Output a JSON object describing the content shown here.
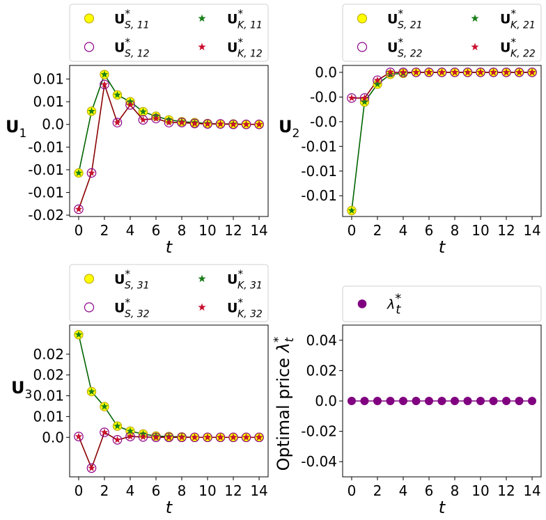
{
  "chart_data": [
    {
      "type": "line",
      "panel": "top-left",
      "xlabel": "t",
      "ylabel": "U",
      "ylabel_sub": "1",
      "x": [
        0,
        1,
        2,
        3,
        4,
        5,
        6,
        7,
        8,
        9,
        10,
        11,
        12,
        13,
        14
      ],
      "xlim": [
        -0.7,
        14.7
      ],
      "xticks": [
        0,
        2,
        4,
        6,
        8,
        10,
        12,
        14
      ],
      "xtick_labels": [
        "0",
        "2",
        "4",
        "6",
        "8",
        "10",
        "12",
        "14"
      ],
      "ylim": [
        -0.0203,
        0.013
      ],
      "yticks": [
        -0.02,
        -0.015,
        -0.01,
        -0.005,
        0.0,
        0.005,
        0.01
      ],
      "ytick_labels": [
        "-0.02",
        "-0.01",
        "-0.01",
        "-0.01",
        "0.0",
        "0.01",
        "0.01"
      ],
      "legend_columns": 2,
      "series": [
        {
          "name": "U*S,11",
          "legend_main": "U",
          "sup": "*",
          "sub": "S, 11",
          "kind": "yellow-circle",
          "values": [
            -0.0107,
            0.0029,
            0.011,
            0.0065,
            0.005,
            0.0028,
            0.0018,
            0.001,
            0.0006,
            0.0004,
            0.0002,
            0.0001,
            0.0001,
            0.0,
            0.0
          ]
        },
        {
          "name": "U*S,12",
          "legend_main": "U",
          "sup": "*",
          "sub": "S, 12",
          "kind": "purple-circle",
          "values": [
            -0.0187,
            -0.0107,
            0.0088,
            0.0004,
            0.0043,
            0.001,
            0.0013,
            0.0004,
            0.0004,
            0.0002,
            0.0001,
            0.0001,
            0.0,
            0.0,
            0.0
          ]
        },
        {
          "name": "U*K,11",
          "legend_main": "U",
          "sup": "*",
          "sub": "K, 11",
          "kind": "green-star",
          "values": [
            -0.0107,
            0.0029,
            0.011,
            0.0065,
            0.005,
            0.0028,
            0.0018,
            0.001,
            0.0006,
            0.0004,
            0.0002,
            0.0001,
            0.0001,
            0.0,
            0.0
          ]
        },
        {
          "name": "U*K,12",
          "legend_main": "U",
          "sup": "*",
          "sub": "K, 12",
          "kind": "red-star",
          "values": [
            -0.0187,
            -0.0107,
            0.0088,
            0.0004,
            0.0043,
            0.001,
            0.0013,
            0.0004,
            0.0004,
            0.0002,
            0.0001,
            0.0001,
            0.0,
            0.0,
            0.0
          ]
        }
      ]
    },
    {
      "type": "line",
      "panel": "top-right",
      "xlabel": "t",
      "ylabel": "U",
      "ylabel_sub": "2",
      "x": [
        0,
        1,
        2,
        3,
        4,
        5,
        6,
        7,
        8,
        9,
        10,
        11,
        12,
        13,
        14
      ],
      "xlim": [
        -0.7,
        14.7
      ],
      "xticks": [
        0,
        2,
        4,
        6,
        8,
        10,
        12,
        14
      ],
      "xtick_labels": [
        "0",
        "2",
        "4",
        "6",
        "8",
        "10",
        "12",
        "14"
      ],
      "ylim": [
        -0.0146,
        0.0007
      ],
      "yticks": [
        0.0,
        -0.0025,
        -0.005,
        -0.0075,
        -0.01,
        -0.0125
      ],
      "ytick_labels": [
        "0.0",
        "-0.0",
        "-0.0",
        "-0.01",
        "-0.01",
        "-0.01"
      ],
      "legend_columns": 2,
      "series": [
        {
          "name": "U*S,21",
          "legend_main": "U",
          "sup": "*",
          "sub": "S, 21",
          "kind": "yellow-circle",
          "values": [
            -0.014,
            -0.003,
            -0.0012,
            -0.0002,
            -0.0001,
            0.0,
            0.0,
            0.0,
            0.0,
            0.0,
            0.0,
            0.0,
            0.0,
            0.0,
            0.0
          ]
        },
        {
          "name": "U*S,22",
          "legend_main": "U",
          "sup": "*",
          "sub": "S, 22",
          "kind": "purple-circle",
          "values": [
            -0.0026,
            -0.0026,
            -0.0008,
            0.0,
            0.0,
            0.0,
            0.0,
            0.0,
            0.0,
            0.0,
            0.0,
            0.0,
            0.0,
            0.0,
            0.0
          ]
        },
        {
          "name": "U*K,21",
          "legend_main": "U",
          "sup": "*",
          "sub": "K, 21",
          "kind": "green-star",
          "values": [
            -0.014,
            -0.003,
            -0.0012,
            -0.0002,
            -0.0001,
            0.0,
            0.0,
            0.0,
            0.0,
            0.0,
            0.0,
            0.0,
            0.0,
            0.0,
            0.0
          ]
        },
        {
          "name": "U*K,22",
          "legend_main": "U",
          "sup": "*",
          "sub": "K, 22",
          "kind": "red-star",
          "values": [
            -0.0026,
            -0.0026,
            -0.0008,
            0.0,
            0.0,
            0.0,
            0.0,
            0.0,
            0.0,
            0.0,
            0.0,
            0.0,
            0.0,
            0.0,
            0.0
          ]
        }
      ]
    },
    {
      "type": "line",
      "panel": "bottom-left",
      "xlabel": "t",
      "ylabel": "U",
      "ylabel_sub": "3",
      "x": [
        0,
        1,
        2,
        3,
        4,
        5,
        6,
        7,
        8,
        9,
        10,
        11,
        12,
        13,
        14
      ],
      "xlim": [
        -0.7,
        14.7
      ],
      "xticks": [
        0,
        2,
        4,
        6,
        8,
        10,
        12,
        14
      ],
      "xtick_labels": [
        "0",
        "2",
        "4",
        "6",
        "8",
        "10",
        "12",
        "14"
      ],
      "ylim": [
        -0.0095,
        0.027
      ],
      "yticks": [
        0.0,
        0.01,
        0.02
      ],
      "ytick_labels": [
        "0.0",
        "0.01",
        "0.02"
      ],
      "yticks_extra": [
        0.005,
        0.015
      ],
      "ytick_extra_labels": [
        "0.01",
        "0.02"
      ],
      "legend_columns": 2,
      "series": [
        {
          "name": "U*S,31",
          "legend_main": "U",
          "sup": "*",
          "sub": "S, 31",
          "kind": "yellow-circle",
          "values": [
            0.0247,
            0.011,
            0.0074,
            0.0027,
            0.0015,
            0.0008,
            0.0003,
            0.0002,
            0.0001,
            0.0,
            0.0,
            0.0,
            0.0,
            0.0,
            0.0
          ]
        },
        {
          "name": "U*S,32",
          "legend_main": "U",
          "sup": "*",
          "sub": "S, 32",
          "kind": "purple-circle",
          "values": [
            0.0002,
            -0.0074,
            0.0012,
            -0.0006,
            0.0002,
            0.0001,
            0.0,
            0.0,
            0.0,
            0.0,
            0.0,
            0.0,
            0.0,
            0.0,
            0.0
          ]
        },
        {
          "name": "U*K,31",
          "legend_main": "U",
          "sup": "*",
          "sub": "K, 31",
          "kind": "green-star",
          "values": [
            0.0247,
            0.011,
            0.0074,
            0.0027,
            0.0015,
            0.0008,
            0.0003,
            0.0002,
            0.0001,
            0.0,
            0.0,
            0.0,
            0.0,
            0.0,
            0.0
          ]
        },
        {
          "name": "U*K,32",
          "legend_main": "U",
          "sup": "*",
          "sub": "K, 32",
          "kind": "red-star",
          "values": [
            0.0002,
            -0.0074,
            0.0012,
            -0.0006,
            0.0002,
            0.0001,
            0.0,
            0.0,
            0.0,
            0.0,
            0.0,
            0.0,
            0.0,
            0.0,
            0.0
          ]
        }
      ]
    },
    {
      "type": "line",
      "panel": "bottom-right",
      "xlabel": "t",
      "ylabel": "Optimal price λ*t",
      "ylabel_text": "Optimal price ",
      "ylabel_sym": "λ",
      "x": [
        0,
        1,
        2,
        3,
        4,
        5,
        6,
        7,
        8,
        9,
        10,
        11,
        12,
        13,
        14
      ],
      "xlim": [
        -0.7,
        14.7
      ],
      "xticks": [
        0,
        2,
        4,
        6,
        8,
        10,
        12,
        14
      ],
      "xtick_labels": [
        "0",
        "2",
        "4",
        "6",
        "8",
        "10",
        "12",
        "14"
      ],
      "ylim": [
        -0.05,
        0.05
      ],
      "yticks": [
        0.04,
        0.02,
        0.0,
        -0.02,
        -0.04
      ],
      "ytick_labels": [
        "0.04",
        "0.02",
        "0.0",
        "-0.02",
        "-0.04"
      ],
      "legend_columns": 1,
      "series": [
        {
          "name": "λ*t",
          "legend_main": "λ",
          "sup": "*",
          "sub": "t",
          "kind": "purple-dot",
          "values": [
            0,
            0,
            0,
            0,
            0,
            0,
            0,
            0,
            0,
            0,
            0,
            0,
            0,
            0,
            0
          ]
        }
      ]
    }
  ],
  "colors": {
    "yellow_fill": "#ffff00",
    "yellow_edge": "#b8a000",
    "purple": "#8b008b",
    "green": "#1a7f1a",
    "red": "#c8102e",
    "line_green": "#006400",
    "line_red": "#8b0000",
    "lambda": "#800080"
  }
}
